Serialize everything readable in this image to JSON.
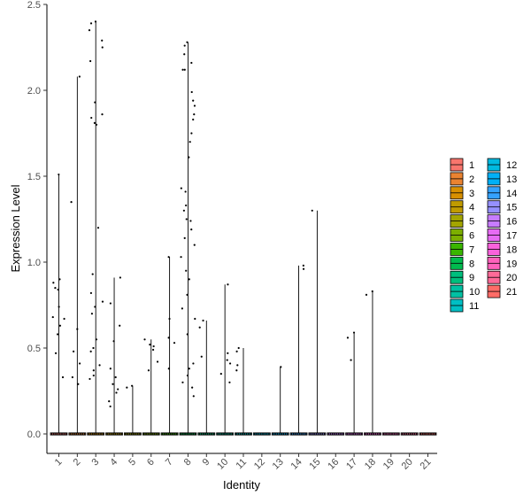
{
  "chart_data": {
    "type": "violin",
    "xlabel": "Identity",
    "ylabel": "Expression Level",
    "ylim": [
      0,
      2.5
    ],
    "yticks": [
      "0.0",
      "0.5",
      "1.0",
      "1.5",
      "2.0",
      "2.5"
    ],
    "categories": [
      "1",
      "2",
      "3",
      "4",
      "5",
      "6",
      "7",
      "8",
      "9",
      "10",
      "11",
      "12",
      "13",
      "14",
      "15",
      "16",
      "17",
      "18",
      "19",
      "20",
      "21"
    ],
    "colors": [
      "#F8766D",
      "#EA8331",
      "#D89000",
      "#C09B00",
      "#A3A500",
      "#7CAE00",
      "#39B600",
      "#00BB4E",
      "#00BF7D",
      "#00C1A3",
      "#00BFC4",
      "#00BAE0",
      "#00B0F6",
      "#35A2FF",
      "#9590FF",
      "#C77CFF",
      "#E76BF3",
      "#FA62DB",
      "#FF62BC",
      "#FF6A98",
      "#FF6C67"
    ],
    "max_values": [
      1.51,
      2.08,
      2.4,
      0.91,
      0.28,
      0.55,
      1.03,
      2.28,
      0.66,
      0.87,
      0.5,
      0.0,
      0.39,
      0.98,
      1.3,
      0.0,
      0.59,
      0.83,
      0.0,
      0.0,
      0.0
    ],
    "points": [
      [
        1.51,
        0.9,
        0.88,
        0.85,
        0.84,
        0.74,
        0.68,
        0.67,
        0.63,
        0.58,
        0.47,
        0.33
      ],
      [
        2.08,
        1.35,
        0.61,
        0.48,
        0.41,
        0.33,
        0.29
      ],
      [
        2.4,
        2.39,
        2.35,
        2.29,
        2.25,
        2.17,
        1.93,
        1.86,
        1.84,
        1.81,
        1.8,
        1.2,
        0.93,
        0.82,
        0.77,
        0.74,
        0.7,
        0.55,
        0.5,
        0.48,
        0.4,
        0.37,
        0.34,
        0.32
      ],
      [
        0.91,
        0.76,
        0.63,
        0.54,
        0.38,
        0.33,
        0.29,
        0.26,
        0.24,
        0.19,
        0.16
      ],
      [
        0.28,
        0.27
      ],
      [
        0.55,
        0.52,
        0.51,
        0.49,
        0.42,
        0.37
      ],
      [
        1.03,
        0.67,
        0.56,
        0.53,
        0.38
      ],
      [
        2.28,
        2.26,
        2.21,
        2.16,
        2.12,
        2.12,
        1.99,
        1.94,
        1.91,
        1.86,
        1.83,
        1.75,
        1.7,
        1.61,
        1.43,
        1.41,
        1.33,
        1.3,
        1.25,
        1.24,
        1.19,
        1.14,
        1.1,
        1.03,
        0.95,
        0.9,
        0.81,
        0.73,
        0.67,
        0.58,
        0.41,
        0.38,
        0.34,
        0.3,
        0.27,
        0.22
      ],
      [
        0.66,
        0.62,
        0.45
      ],
      [
        0.87,
        0.47,
        0.43,
        0.41,
        0.35,
        0.3
      ],
      [
        0.5,
        0.48,
        0.4,
        0.37
      ],
      [],
      [
        0.39
      ],
      [
        0.98,
        0.96
      ],
      [
        1.3
      ],
      [],
      [
        0.59,
        0.56,
        0.43
      ],
      [
        0.83,
        0.81
      ],
      [],
      [],
      []
    ]
  }
}
